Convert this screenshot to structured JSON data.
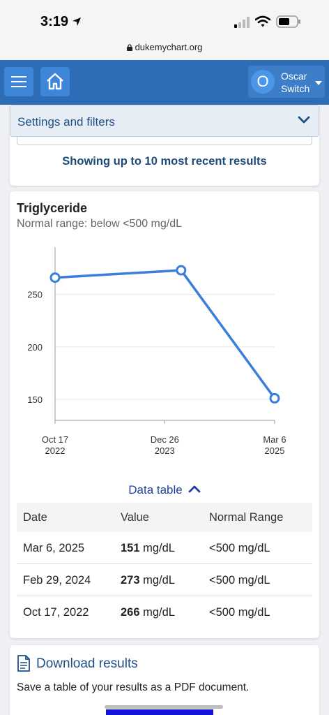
{
  "status_bar": {
    "time": "3:19",
    "url": "dukemychart.org"
  },
  "header": {
    "user": {
      "initial": "O",
      "name_line1": "Oscar",
      "name_line2": "Switch"
    }
  },
  "settings": {
    "label": "Settings and filters",
    "showing_text": "Showing up to 10 most recent results"
  },
  "result": {
    "test_name": "Triglyceride",
    "normal_range": "Normal range: below <500 mg/dL",
    "data_table_label": "Data table",
    "table": {
      "headers": [
        "Date",
        "Value",
        "Normal Range"
      ],
      "rows": [
        {
          "date": "Mar 6, 2025",
          "value": "151",
          "unit": "mg/dL",
          "range": "<500 mg/dL"
        },
        {
          "date": "Feb 29, 2024",
          "value": "273",
          "unit": "mg/dL",
          "range": "<500 mg/dL"
        },
        {
          "date": "Oct 17, 2022",
          "value": "266",
          "unit": "mg/dL",
          "range": "<500 mg/dL"
        }
      ]
    }
  },
  "chart_data": {
    "type": "line",
    "x": [
      "2022-10-17",
      "2024-02-29",
      "2025-03-06"
    ],
    "x_tick_labels": [
      {
        "date": "2022-10-17",
        "line1": "Oct 17",
        "line2": "2022"
      },
      {
        "date": "2023-12-26",
        "line1": "Dec 26",
        "line2": "2023"
      },
      {
        "date": "2025-03-06",
        "line1": "Mar 6",
        "line2": "2025"
      }
    ],
    "y_ticks": [
      150,
      200,
      250
    ],
    "series": [
      {
        "values": [
          266,
          273,
          151
        ]
      }
    ],
    "ylim": [
      130,
      295
    ],
    "grid": true,
    "color": "#3a7fdb"
  },
  "download": {
    "link_label": "Download results",
    "description": "Save a table of your results as a PDF document."
  }
}
